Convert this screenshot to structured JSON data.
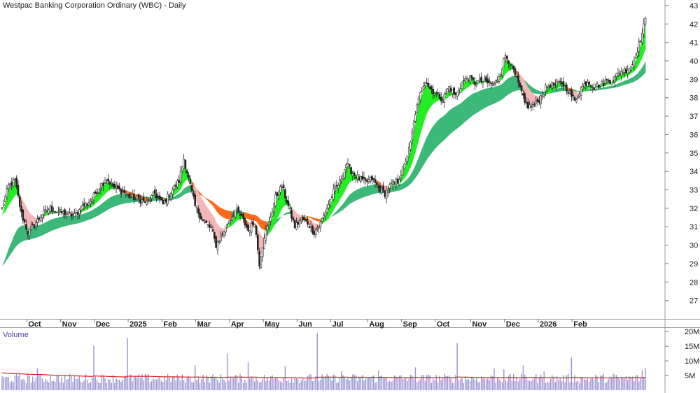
{
  "chart_title": "Westpac Banking Corporation Ordinary (WBC) - Daily",
  "volume_label": "Volume",
  "colors": {
    "background": "#ffffff",
    "candle": "#222222",
    "short_band_up": "#22ee22",
    "short_band_down": "#ff7f2a",
    "short_band_fade": "#f4b6b6",
    "long_band": "#3cb878",
    "long_band_down": "#ff6a1a",
    "volume_bar": "#9a94d4",
    "volume_ma": "#dd2222",
    "grid": "#bbbbbb"
  },
  "chart_data": [
    {
      "type": "candlestick",
      "title": "Westpac Banking Corporation Ordinary (WBC) - Daily",
      "price_axis": {
        "ticks": [
          27,
          28,
          29,
          30,
          31,
          32,
          33,
          34,
          35,
          36,
          37,
          38,
          39,
          40,
          41,
          42,
          43
        ],
        "range": [
          26,
          43.3
        ]
      },
      "x_tick_labels": [
        "Oct",
        "Nov",
        "Dec",
        "2025",
        "Feb",
        "Mar",
        "Apr",
        "May",
        "Jun",
        "Jul",
        "Aug",
        "Sep",
        "Oct",
        "Nov",
        "Dec",
        "2026",
        "Feb"
      ],
      "close_anchors": [
        [
          0,
          32.0
        ],
        [
          4,
          33.2
        ],
        [
          8,
          33.5
        ],
        [
          12,
          31.7
        ],
        [
          16,
          30.7
        ],
        [
          20,
          31.1
        ],
        [
          25,
          31.7
        ],
        [
          30,
          32.0
        ],
        [
          35,
          31.8
        ],
        [
          40,
          31.7
        ],
        [
          45,
          31.6
        ],
        [
          50,
          32.1
        ],
        [
          55,
          32.4
        ],
        [
          60,
          33.1
        ],
        [
          65,
          33.6
        ],
        [
          70,
          33.1
        ],
        [
          75,
          32.9
        ],
        [
          80,
          32.6
        ],
        [
          85,
          32.5
        ],
        [
          90,
          32.3
        ],
        [
          95,
          32.8
        ],
        [
          100,
          32.2
        ],
        [
          105,
          32.9
        ],
        [
          110,
          33.5
        ],
        [
          113,
          34.7
        ],
        [
          116,
          33.6
        ],
        [
          120,
          32.1
        ],
        [
          125,
          31.3
        ],
        [
          130,
          30.9
        ],
        [
          133,
          30.0
        ],
        [
          137,
          30.6
        ],
        [
          141,
          31.3
        ],
        [
          145,
          31.9
        ],
        [
          149,
          31.5
        ],
        [
          153,
          30.8
        ],
        [
          157,
          31.3
        ],
        [
          160,
          29.0
        ],
        [
          163,
          30.5
        ],
        [
          166,
          31.2
        ],
        [
          170,
          32.6
        ],
        [
          174,
          33.2
        ],
        [
          178,
          32.1
        ],
        [
          182,
          31.0
        ],
        [
          186,
          31.4
        ],
        [
          190,
          31.2
        ],
        [
          194,
          30.7
        ],
        [
          198,
          31.2
        ],
        [
          202,
          32.0
        ],
        [
          206,
          32.9
        ],
        [
          210,
          33.4
        ],
        [
          214,
          34.4
        ],
        [
          218,
          33.9
        ],
        [
          222,
          33.6
        ],
        [
          226,
          33.4
        ],
        [
          230,
          33.6
        ],
        [
          234,
          33.1
        ],
        [
          238,
          32.8
        ],
        [
          242,
          33.3
        ],
        [
          246,
          33.5
        ],
        [
          250,
          34.3
        ],
        [
          254,
          35.5
        ],
        [
          257,
          37.2
        ],
        [
          260,
          38.2
        ],
        [
          263,
          39.0
        ],
        [
          266,
          38.5
        ],
        [
          270,
          38.2
        ],
        [
          274,
          37.9
        ],
        [
          278,
          38.6
        ],
        [
          282,
          38.1
        ],
        [
          286,
          38.8
        ],
        [
          290,
          39.1
        ],
        [
          294,
          38.8
        ],
        [
          298,
          38.9
        ],
        [
          302,
          38.8
        ],
        [
          306,
          38.7
        ],
        [
          310,
          39.4
        ],
        [
          313,
          40.3
        ],
        [
          316,
          39.9
        ],
        [
          319,
          39.2
        ],
        [
          322,
          38.5
        ],
        [
          325,
          37.7
        ],
        [
          328,
          37.5
        ],
        [
          331,
          37.6
        ],
        [
          334,
          37.9
        ],
        [
          337,
          38.4
        ],
        [
          340,
          38.7
        ],
        [
          344,
          38.7
        ],
        [
          348,
          38.8
        ],
        [
          352,
          38.4
        ],
        [
          356,
          37.8
        ],
        [
          360,
          38.5
        ],
        [
          364,
          38.9
        ],
        [
          368,
          38.6
        ],
        [
          372,
          38.7
        ],
        [
          376,
          38.9
        ],
        [
          380,
          39.0
        ],
        [
          384,
          39.4
        ],
        [
          388,
          39.5
        ],
        [
          392,
          39.8
        ],
        [
          395,
          40.6
        ],
        [
          398,
          41.5
        ],
        [
          400,
          42.2
        ]
      ],
      "volume_axis": {
        "ticks_label": [
          "5M",
          "10M",
          "15M",
          "20M"
        ],
        "ticks_value": [
          5,
          10,
          15,
          20
        ],
        "range": [
          0,
          21
        ],
        "unit": "millions"
      },
      "volume_ma_level": 4.7,
      "volume_spikes": [
        [
          22,
          7.5
        ],
        [
          57,
          15.2
        ],
        [
          78,
          17.8
        ],
        [
          120,
          8.5
        ],
        [
          140,
          12.5
        ],
        [
          153,
          9.5
        ],
        [
          176,
          8.2
        ],
        [
          196,
          19.5
        ],
        [
          211,
          6.5
        ],
        [
          234,
          6.8
        ],
        [
          257,
          7.8
        ],
        [
          283,
          16.2
        ],
        [
          306,
          7.5
        ],
        [
          312,
          7.2
        ],
        [
          324,
          8.5
        ],
        [
          337,
          6.4
        ],
        [
          354,
          11.2
        ],
        [
          380,
          5.6
        ],
        [
          398,
          6.8
        ],
        [
          400,
          7.5
        ]
      ]
    }
  ]
}
